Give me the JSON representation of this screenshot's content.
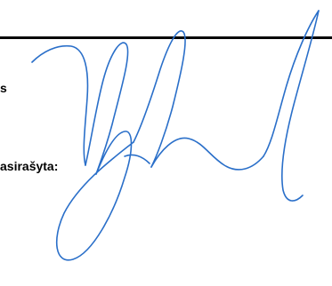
{
  "document": {
    "line_1": "s",
    "line_2": "asirašyta:"
  },
  "signature": {
    "ink_color": "#2a6fc9"
  }
}
